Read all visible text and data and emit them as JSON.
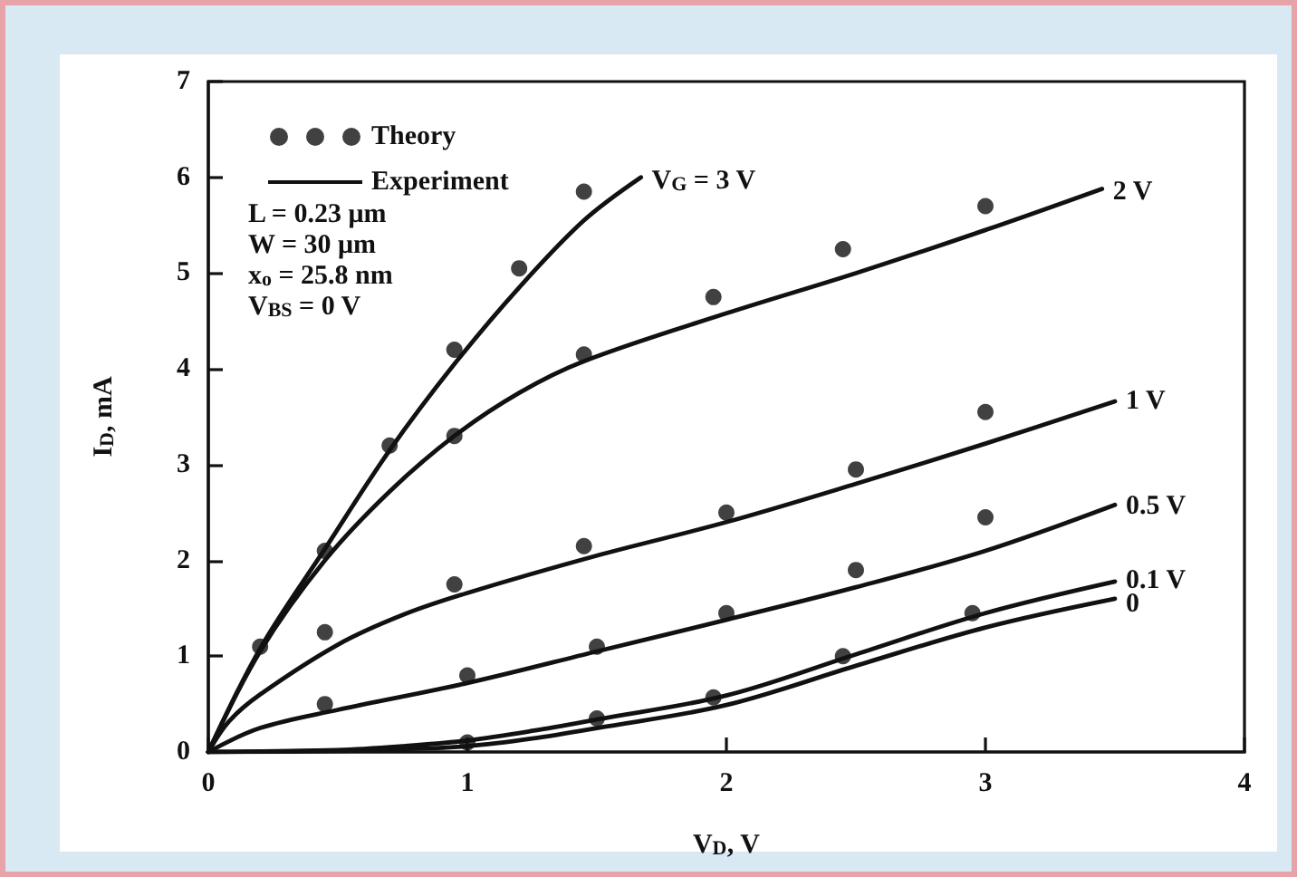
{
  "chart_data": {
    "type": "line",
    "xlabel": "V$_{D}$, V",
    "ylabel": "I$_{D}$, mA",
    "xlim": [
      0,
      4
    ],
    "xticks": [
      0,
      1,
      2,
      3,
      4
    ],
    "ylim": [
      0,
      7
    ],
    "yticks": [
      0,
      1,
      2,
      3,
      4,
      5,
      6,
      7
    ],
    "grid": false,
    "legend": "top left",
    "marker": "none",
    "line_style": "solid",
    "series": [
      {
        "name": "Theory",
        "type": "scatter",
        "marker": "circle",
        "color": "#111111",
        "x": [
          0.2,
          0.45,
          0.7,
          0.95,
          1.2,
          1.45,
          0.95,
          1.45,
          1.95,
          2.45,
          3.0,
          0.45,
          0.95,
          1.45,
          2.0,
          2.5,
          3.0,
          0.45,
          1.0,
          1.5,
          2.0,
          2.5,
          3.0,
          1.0,
          1.5,
          1.95,
          2.45,
          2.95
        ],
        "values": [
          1.1,
          2.1,
          3.2,
          4.2,
          5.05,
          5.85,
          3.3,
          4.15,
          4.75,
          5.25,
          5.7,
          1.25,
          1.75,
          2.15,
          2.5,
          2.95,
          3.55,
          0.5,
          0.8,
          1.1,
          1.45,
          1.9,
          2.45,
          0.1,
          0.35,
          0.57,
          1.0,
          1.45
        ]
      },
      {
        "name": "Experiment",
        "color": "#111111",
        "x": [
          0,
          0.2,
          0.45,
          0.7,
          0.95,
          1.2,
          1.45,
          1.67
        ],
        "values": [
          0,
          1.08,
          2.12,
          3.15,
          4.05,
          4.85,
          5.55,
          6.0
        ]
      },
      {
        "color": "#111111",
        "x": [
          0,
          0.2,
          0.45,
          0.7,
          0.95,
          1.2,
          1.45,
          2,
          2.5,
          3,
          3.45
        ],
        "values": [
          0,
          1.05,
          2.0,
          2.72,
          3.3,
          3.75,
          4.08,
          4.58,
          5.0,
          5.45,
          5.88
        ]
      },
      {
        "color": "#111111",
        "x": [
          0,
          0.08,
          0.2,
          0.5,
          0.75,
          1,
          1.5,
          2,
          2.5,
          3,
          3.5
        ],
        "values": [
          0,
          0.32,
          0.6,
          1.12,
          1.43,
          1.66,
          2.05,
          2.4,
          2.8,
          3.22,
          3.66
        ]
      },
      {
        "color": "#111111",
        "x": [
          0,
          0.2,
          0.5,
          1,
          1.5,
          2,
          2.5,
          3,
          3.5
        ],
        "values": [
          0,
          0.25,
          0.44,
          0.72,
          1.05,
          1.38,
          1.72,
          2.1,
          2.58
        ]
      },
      {
        "color": "#111111",
        "x": [
          0,
          0.5,
          0.75,
          1,
          1.25,
          1.5,
          2,
          2.5,
          3,
          3.5
        ],
        "values": [
          0,
          0.02,
          0.06,
          0.12,
          0.22,
          0.34,
          0.59,
          1.02,
          1.45,
          1.78
        ]
      },
      {
        "color": "#111111",
        "x": [
          0,
          0.5,
          0.75,
          1,
          1.25,
          1.5,
          2,
          2.5,
          3,
          3.5
        ],
        "values": [
          0,
          0.01,
          0.03,
          0.06,
          0.14,
          0.25,
          0.49,
          0.9,
          1.3,
          1.6
        ]
      }
    ],
    "annotations": [
      "L = 0.23 μm",
      "W = 30 μm",
      "x$_{o}$ = 25.8 nm",
      "V$_{BS}$ = 0 V",
      {
        "text": "V$_{G}$ = 3 V",
        "x": 1.67,
        "y": 6.0
      },
      {
        "text": "2 V",
        "x": 3.45,
        "y": 5.88
      },
      {
        "text": "1 V",
        "x": 3.5,
        "y": 3.7
      },
      {
        "text": "0.5 V",
        "x": 3.5,
        "y": 2.6
      },
      {
        "text": "0.1 V",
        "x": 3.5,
        "y": 1.83
      },
      {
        "text": "0",
        "x": 3.5,
        "y": 1.58
      }
    ]
  }
}
